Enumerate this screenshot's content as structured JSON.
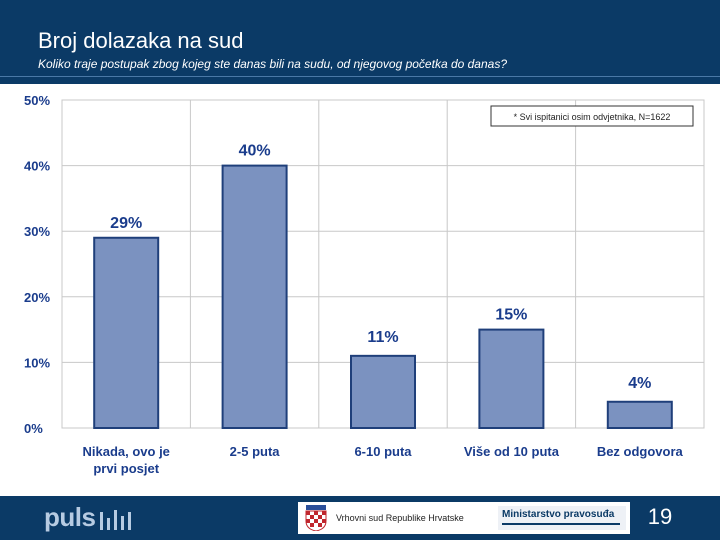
{
  "header": {
    "title": "Broj dolazaka na sud",
    "subtitle": "Koliko traje postupak zbog kojeg ste danas bili na sudu, od njegovog početka do danas?"
  },
  "chart_data": {
    "type": "bar",
    "note": "* Svi ispitanici osim odvjetnika, N=1622",
    "categories": [
      "Nikada, ovo je prvi posjet",
      "2-5 puta",
      "6-10 puta",
      "Više od 10 puta",
      "Bez odgovora"
    ],
    "values": [
      29,
      40,
      11,
      15,
      4
    ],
    "value_labels": [
      "29%",
      "40%",
      "11%",
      "15%",
      "4%"
    ],
    "ylim": [
      0,
      50
    ],
    "yticks": [
      0,
      10,
      20,
      30,
      40,
      50
    ],
    "ytick_labels": [
      "0%",
      "10%",
      "20%",
      "30%",
      "40%",
      "50%"
    ],
    "grid": true,
    "colors": {
      "bar_fill": "#7b92c0",
      "bar_stroke": "#1f3f7a",
      "grid": "#c8c8c8",
      "axis_text": "#1a3c8c"
    }
  },
  "footer": {
    "logo": "puls",
    "court_name": "Vrhovni sud Republike Hrvatske",
    "ministry": "Ministarstvo pravosuđa",
    "page_number": "19"
  },
  "colors": {
    "header_bg": "#0b3a66",
    "footer_bg": "#0b3a66"
  },
  "icons": {
    "coat_of_arms": "croatian-coat-of-arms-icon",
    "logo_bars": "signal-bars-icon"
  }
}
